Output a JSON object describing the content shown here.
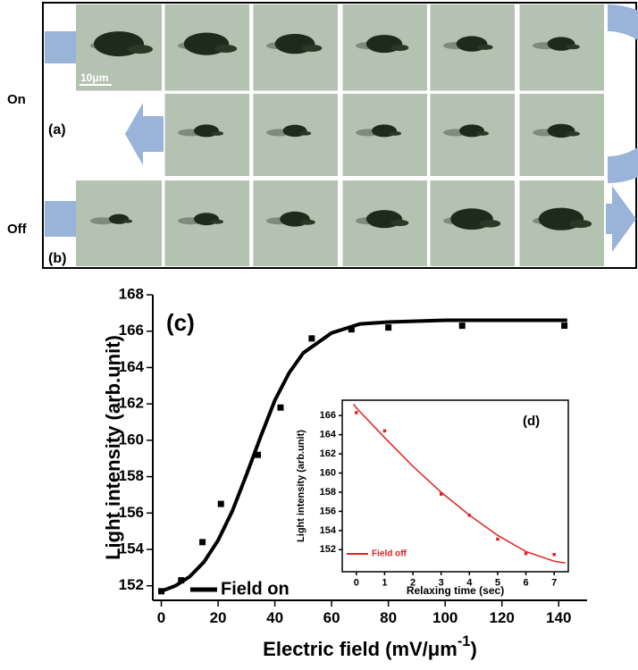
{
  "figure": {
    "on": "On",
    "off": "Off",
    "panel_a": "(a)",
    "panel_b": "(b)",
    "scale_bar": "10μm"
  },
  "chart_data": [
    {
      "type": "scatter",
      "panel": "(c)",
      "ylabel": "Light intensity  (arb.unit)",
      "xlabel": {
        "text": "Electric field (mV/μm",
        "sup": "-1",
        "close": ")"
      },
      "xlim": [
        -3,
        150
      ],
      "ylim": [
        151.2,
        168
      ],
      "xticks": [
        0,
        20,
        40,
        60,
        80,
        100,
        120,
        140
      ],
      "yticks": [
        152,
        154,
        156,
        158,
        160,
        162,
        164,
        166,
        168
      ],
      "grid": false,
      "legend": "lower left",
      "series": [
        {
          "type": "line",
          "name": "Field on",
          "color": "#000000",
          "x": [
            0,
            5,
            10,
            15,
            20,
            25,
            30,
            35,
            40,
            45,
            50,
            60,
            70,
            80,
            100,
            120,
            143
          ],
          "values": [
            151.7,
            152.0,
            152.5,
            153.3,
            154.5,
            156.1,
            158.1,
            160.2,
            162.2,
            163.7,
            164.8,
            165.9,
            166.4,
            166.5,
            166.6,
            166.6,
            166.6
          ]
        },
        {
          "type": "scatter",
          "color": "#000000",
          "x": [
            0,
            7,
            14.5,
            21,
            34,
            42,
            53,
            67,
            80,
            106,
            142
          ],
          "values": [
            151.7,
            152.3,
            154.4,
            156.5,
            159.2,
            161.8,
            165.6,
            166.1,
            166.2,
            166.3,
            166.3
          ]
        }
      ]
    },
    {
      "type": "scatter",
      "panel": "(d)",
      "ylabel": "Light intensity  (arb.unit)",
      "xlabel": {
        "text": "Relaxing time (sec)"
      },
      "xlim": [
        -0.5,
        7.5
      ],
      "ylim": [
        149.7,
        167.6
      ],
      "xticks": [
        0,
        1,
        2,
        3,
        4,
        5,
        6,
        7
      ],
      "yticks": [
        152,
        154,
        156,
        158,
        160,
        162,
        164,
        166
      ],
      "grid": false,
      "legend": "lower left",
      "series": [
        {
          "type": "line",
          "name": "Field off",
          "color": "#e02020",
          "x": [
            -0.1,
            0,
            1,
            2,
            3,
            4,
            5,
            6,
            7,
            7.4
          ],
          "values": [
            167.2,
            166.8,
            163.7,
            160.7,
            158.0,
            155.6,
            153.5,
            151.8,
            150.8,
            150.6
          ]
        },
        {
          "type": "scatter",
          "color": "#e02020",
          "x": [
            0,
            1,
            3,
            4,
            5,
            6,
            7
          ],
          "values": [
            166.3,
            164.4,
            157.8,
            155.6,
            153.1,
            151.6,
            151.5
          ]
        }
      ]
    }
  ]
}
